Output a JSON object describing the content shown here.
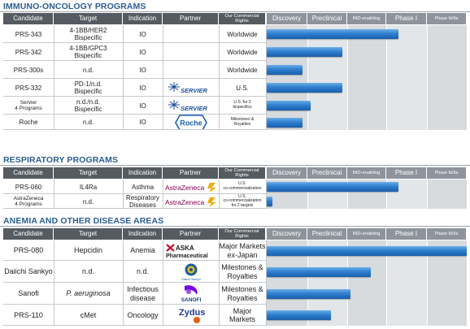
{
  "colors": {
    "title": "#2a5d93",
    "header": "#555b61",
    "bar": "#2f7fcf",
    "phase_bg": "#d8dbde"
  },
  "phases": [
    "Discovery",
    "Preclinical",
    "IND-enabling",
    "Phase I",
    "Phase Ib/IIa"
  ],
  "sections": [
    {
      "title": "IMMUNO-ONCOLOGY PROGRAMS",
      "headers": {
        "candidate": "Candidate",
        "target": "Target",
        "indication": "Indication",
        "partner": "Partner",
        "rights": "Our Commercial Rights"
      },
      "rows": [
        {
          "candidate": "PRS-343",
          "target": "4-1BB/HER2\nBispecific",
          "indication": "IO",
          "partner": "",
          "partner_logo": "",
          "rights": "Worldwide",
          "progress": 3.3
        },
        {
          "candidate": "PRS-342",
          "target": "4-1BB/GPC3\nBispecific",
          "indication": "IO",
          "partner": "",
          "partner_logo": "",
          "rights": "Worldwide",
          "progress": 1.9
        },
        {
          "candidate": "PRS-300s",
          "target": "n.d.",
          "indication": "IO",
          "partner": "",
          "partner_logo": "",
          "rights": "Worldwide",
          "progress": 0.9
        },
        {
          "candidate": "PRS-332",
          "target": "PD-1/n.d.\nBispecific",
          "indication": "IO",
          "partner": "SERVIER",
          "partner_logo": "servier-logo",
          "rights": "U.S.",
          "progress": 1.9
        },
        {
          "candidate": "Servier\n4 Programs",
          "target": "n.d./n.d.\nBispecific",
          "indication": "IO",
          "partner": "SERVIER",
          "partner_logo": "servier-logo",
          "rights": "U.S. for 2\nbispecifics",
          "progress": 1.1
        },
        {
          "candidate": "Roche",
          "target": "n.d.",
          "indication": "IO",
          "partner": "Roche",
          "partner_logo": "roche-logo",
          "rights": "Milestones &\nRoyalties",
          "progress": 0.9
        }
      ]
    },
    {
      "title": "RESPIRATORY PROGRAMS",
      "headers": {
        "candidate": "Candidate",
        "target": "Target",
        "indication": "Indication",
        "partner": "Partner",
        "rights": "Our Commercial Rights"
      },
      "rows": [
        {
          "candidate": "PRS-060",
          "target": "IL4Ra",
          "indication": "Asthma",
          "partner": "AstraZeneca",
          "partner_logo": "astrazeneca-logo",
          "rights": "U.S.\nco-commercialization",
          "progress": 3.3
        },
        {
          "candidate": "AstraZeneca\n4 Programs",
          "target": "n.d.",
          "indication": "Respiratory\nDiseases",
          "partner": "AstraZeneca",
          "partner_logo": "astrazeneca-logo",
          "rights": "U.S.\nco-commercialization\nfor 2 targets",
          "progress": 0.15
        }
      ]
    },
    {
      "title": "ANEMIA AND OTHER DISEASE AREAS",
      "headers": {
        "candidate": "Candidate",
        "target": "Target",
        "indication": "Indication",
        "partner": "Partner",
        "rights": "Our Commercial Rights"
      },
      "rows": [
        {
          "candidate": "PRS-080",
          "target": "Hepcidin",
          "indication": "Anemia",
          "partner": "ASKA Pharmaceutical",
          "partner_logo": "aska-logo",
          "rights": "Major Markets\nex-Japan",
          "progress": 5.0
        },
        {
          "candidate": "Daiichi Sankyo",
          "target": "n.d.",
          "indication": "n.d.",
          "partner": "Daiichi Sankyo",
          "partner_logo": "daiichi-logo",
          "rights": "Milestones &\nRoyalties",
          "progress": 2.6
        },
        {
          "candidate": "Sanofi",
          "target": "P. aeruginosa",
          "indication": "Infectious\ndisease",
          "partner": "SANOFI",
          "partner_logo": "sanofi-logo",
          "rights": "Milestones &\nRoyalties",
          "progress": 2.1
        },
        {
          "candidate": "PRS-110",
          "target": "cMet",
          "indication": "Oncology",
          "partner": "Zydus",
          "partner_logo": "zydus-logo",
          "rights": "Major\nMarkets",
          "progress": 1.6
        }
      ]
    }
  ],
  "chart_data": {
    "type": "bar",
    "orientation": "horizontal",
    "categories": [
      "PRS-343",
      "PRS-342",
      "PRS-300s",
      "PRS-332",
      "Servier 4 Programs",
      "Roche",
      "PRS-060",
      "AstraZeneca 4 Programs",
      "PRS-080",
      "Daiichi Sankyo",
      "Sanofi",
      "PRS-110"
    ],
    "stages": [
      "Discovery",
      "Preclinical",
      "IND-enabling",
      "Phase I",
      "Phase Ib/IIa"
    ],
    "values_in_stage_units": [
      3.3,
      1.9,
      0.9,
      1.9,
      1.1,
      0.9,
      3.3,
      0.15,
      5.0,
      2.6,
      2.1,
      1.6
    ],
    "xlim": [
      0,
      5
    ],
    "grid": false
  }
}
